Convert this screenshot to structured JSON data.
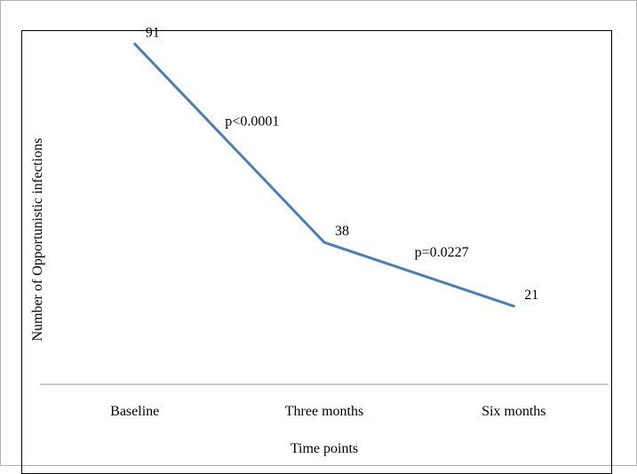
{
  "chart_data": {
    "type": "line",
    "categories": [
      "Baseline",
      "Three months",
      "Six months"
    ],
    "series": [
      {
        "values": [
          91,
          38,
          21
        ],
        "color": "#4a7ebb"
      }
    ],
    "data_labels": [
      "91",
      "38",
      "21"
    ],
    "annotations": [
      {
        "text": "p<0.0001",
        "between": [
          "Baseline",
          "Three months"
        ]
      },
      {
        "text": "p=0.0227",
        "between": [
          "Three months",
          "Six months"
        ]
      }
    ],
    "xlabel": "Time points",
    "ylabel": "Number of Opportunistic infections",
    "ylim": [
      0,
      100
    ],
    "grid": false,
    "legend": "none"
  }
}
